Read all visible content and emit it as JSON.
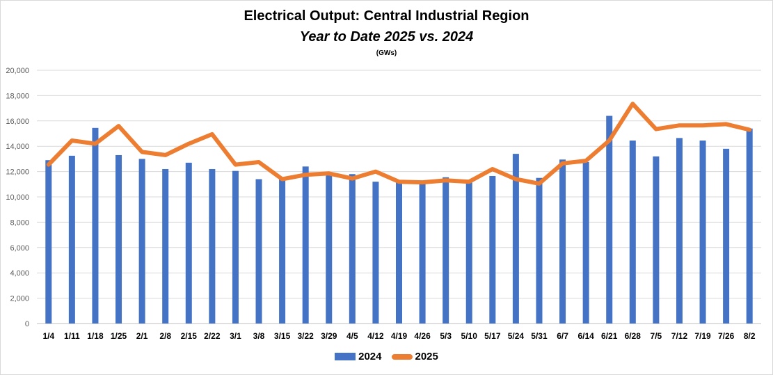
{
  "title": "Electrical Output:  Central Industrial Region",
  "subtitle": "Year to Date 2025 vs. 2024",
  "unit_note": "(GWs)",
  "colors": {
    "bar": "#4472C4",
    "line": "#ED7D31",
    "grid": "#d9d9d9"
  },
  "chart_data": {
    "type": "bar",
    "categories": [
      "1/4",
      "1/11",
      "1/18",
      "1/25",
      "2/1",
      "2/8",
      "2/15",
      "2/22",
      "3/1",
      "3/8",
      "3/15",
      "3/22",
      "3/29",
      "4/5",
      "4/12",
      "4/19",
      "4/26",
      "5/3",
      "5/10",
      "5/17",
      "5/24",
      "5/31",
      "6/7",
      "6/14",
      "6/21",
      "6/28",
      "7/5",
      "7/12",
      "7/19",
      "7/26",
      "8/2"
    ],
    "series": [
      {
        "name": "2024",
        "type": "bar",
        "values": [
          12900,
          13250,
          15450,
          13300,
          13000,
          12200,
          12700,
          12200,
          12050,
          11400,
          11400,
          12400,
          11800,
          11800,
          11200,
          11300,
          11200,
          11550,
          11300,
          11650,
          13400,
          11500,
          12950,
          12750,
          16400,
          14450,
          13200,
          14650,
          14450,
          13800,
          15400
        ]
      },
      {
        "name": "2025",
        "type": "line",
        "values": [
          12550,
          14450,
          14200,
          15600,
          13550,
          13300,
          14200,
          14950,
          12550,
          12750,
          11400,
          11750,
          11850,
          11450,
          12000,
          11200,
          11150,
          11300,
          11200,
          12200,
          11400,
          11050,
          12650,
          12850,
          14450,
          17350,
          15350,
          15650,
          15650,
          15750,
          15300
        ]
      }
    ],
    "ylim": [
      0,
      20000
    ],
    "yticks": [
      0,
      2000,
      4000,
      6000,
      8000,
      10000,
      12000,
      14000,
      16000,
      18000,
      20000
    ],
    "ytick_labels": [
      "0",
      "2,000",
      "4,000",
      "6,000",
      "8,000",
      "10,000",
      "12,000",
      "14,000",
      "16,000",
      "18,000",
      "20,000"
    ],
    "grid": true,
    "legend": "bottom"
  }
}
